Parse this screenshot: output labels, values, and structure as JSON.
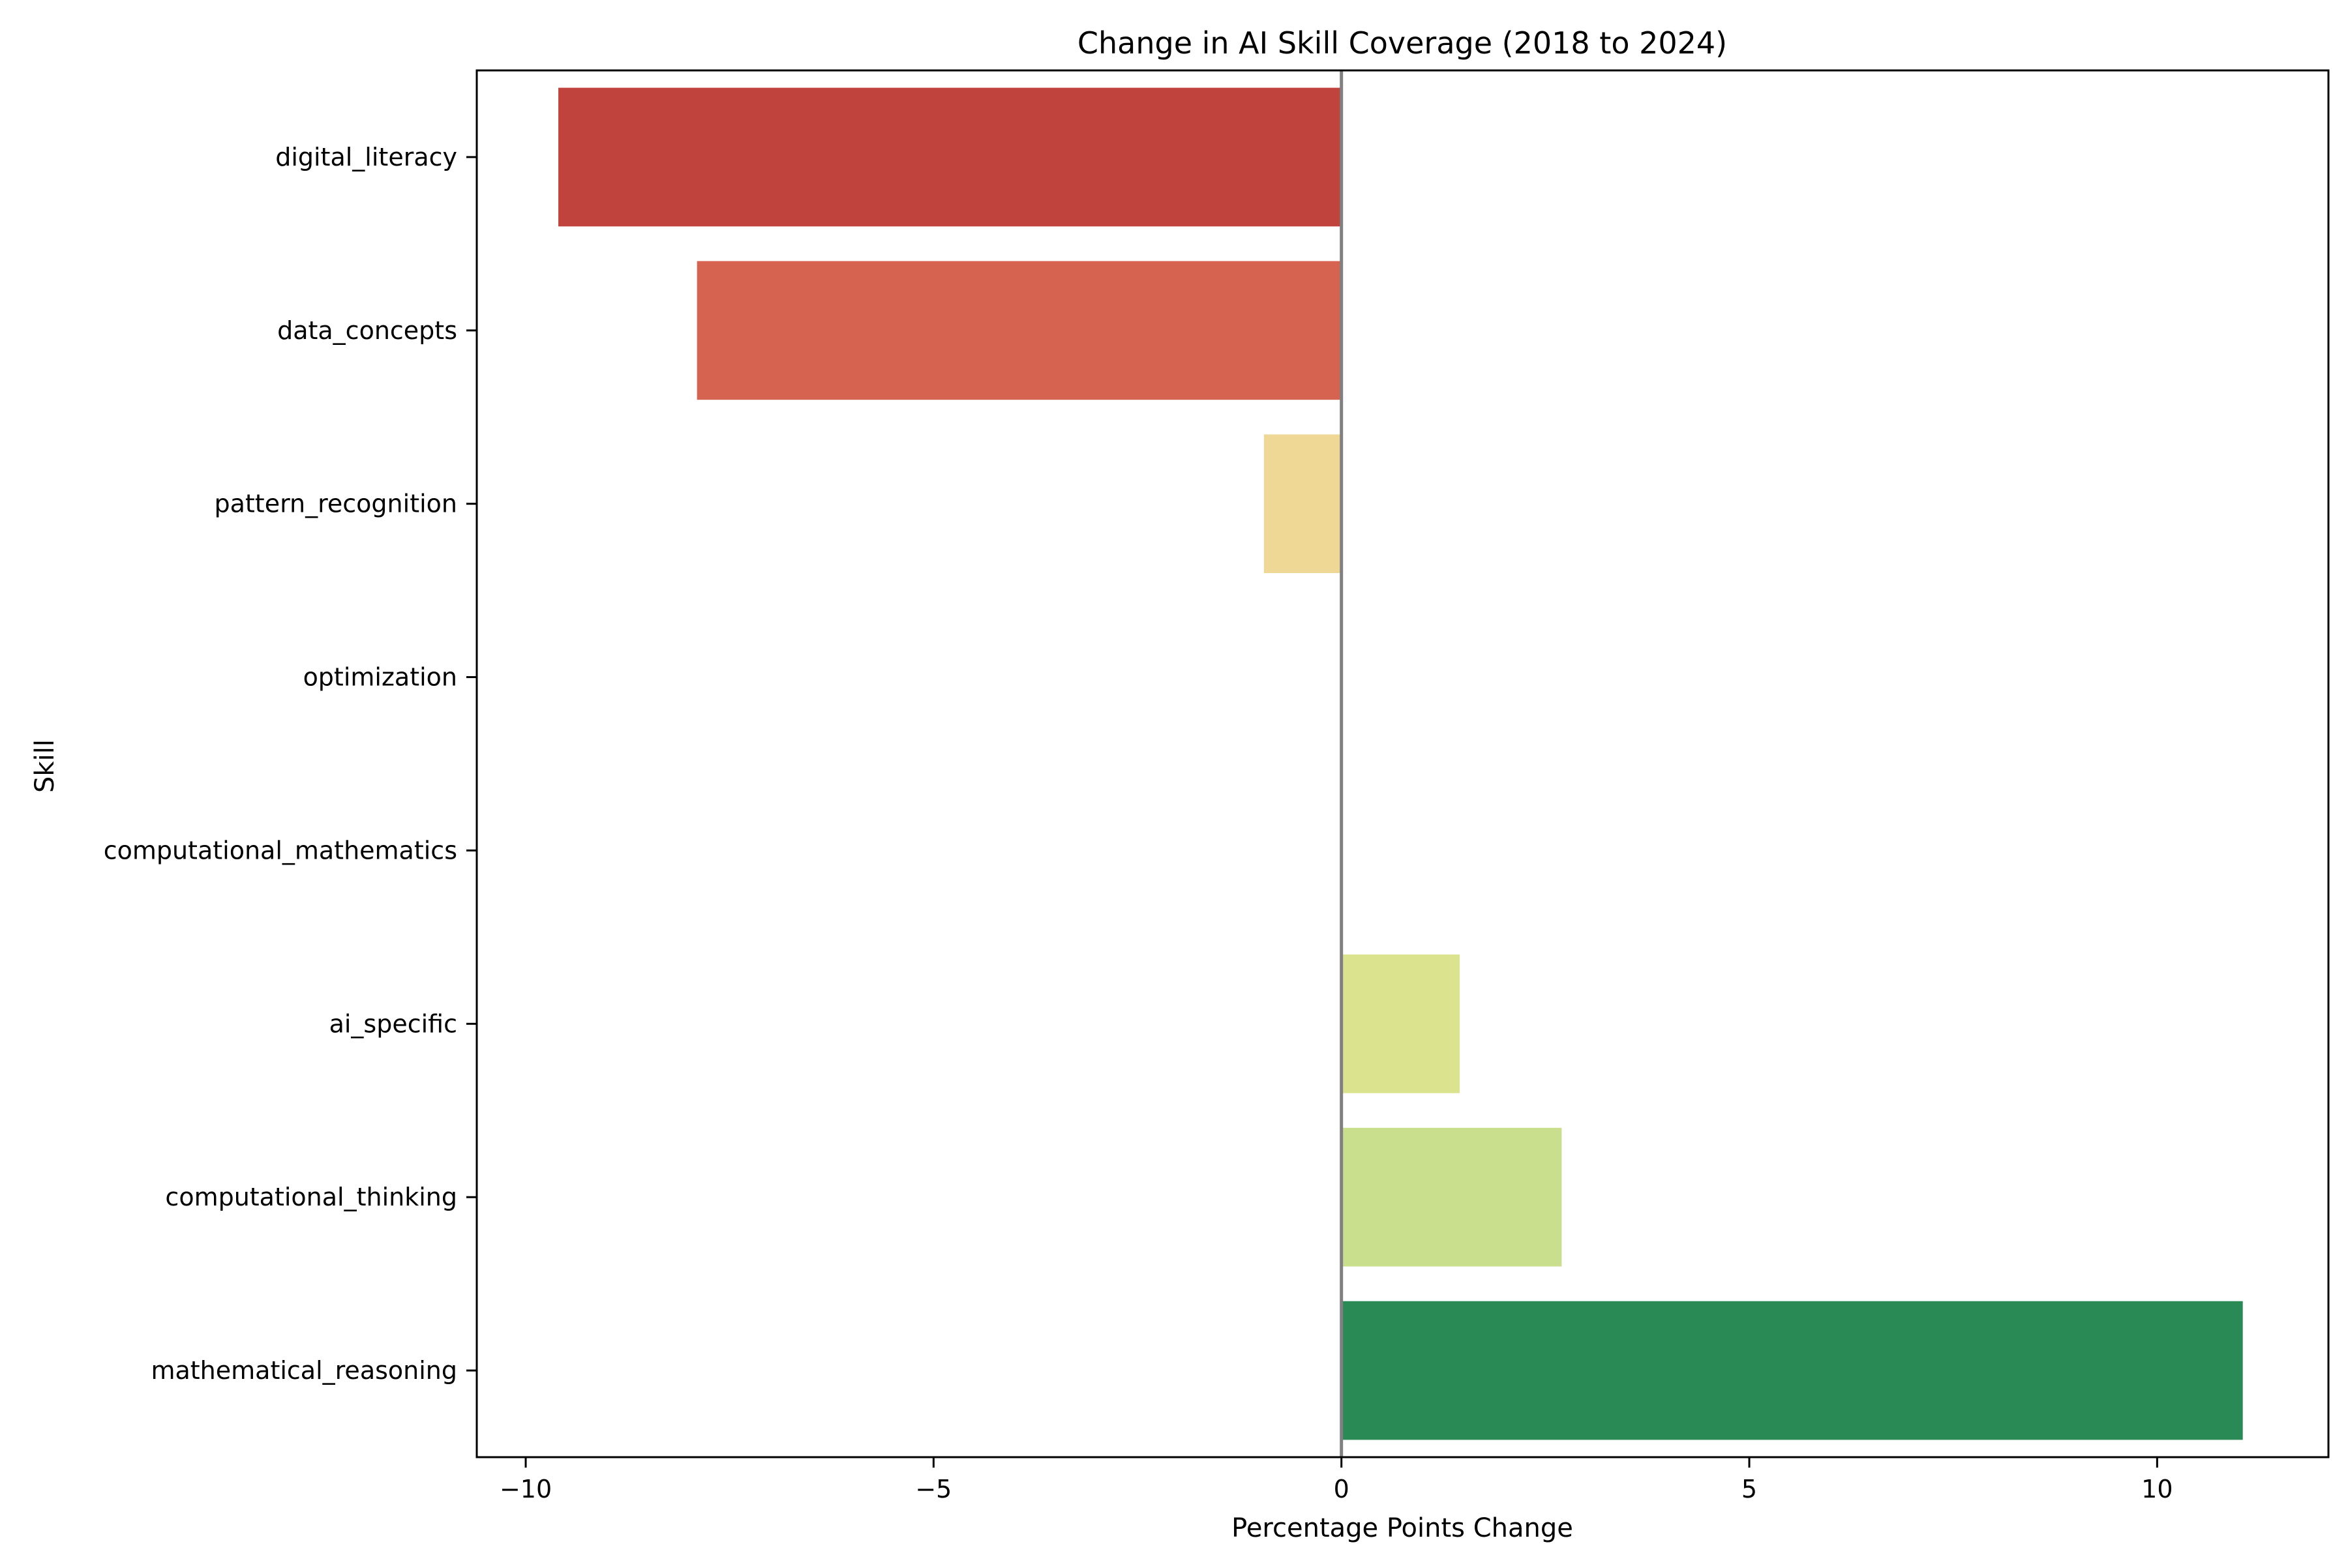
{
  "chart_data": {
    "type": "bar",
    "orientation": "horizontal",
    "title": "Change in AI Skill Coverage (2018 to 2024)",
    "xlabel": "Percentage Points Change",
    "ylabel": "Skill",
    "xlim": [
      -10.6,
      12.1
    ],
    "xticks": [
      -10,
      -5,
      0,
      5,
      10
    ],
    "xtick_labels": [
      "−10",
      "−5",
      "0",
      "5",
      "10"
    ],
    "grid": false,
    "legend": "none",
    "zero_line": true,
    "categories": [
      "digital_literacy",
      "data_concepts",
      "pattern_recognition",
      "optimization",
      "computational_mathematics",
      "ai_specific",
      "computational_thinking",
      "mathematical_reasoning"
    ],
    "values": [
      -9.6,
      -7.9,
      -0.95,
      0,
      0,
      1.45,
      2.7,
      11.05
    ],
    "colors": [
      "#c0433d",
      "#d6634f",
      "#efd796",
      "#ffffff",
      "#ffffff",
      "#dce38f",
      "#cadf8e",
      "#2a8a55"
    ]
  }
}
